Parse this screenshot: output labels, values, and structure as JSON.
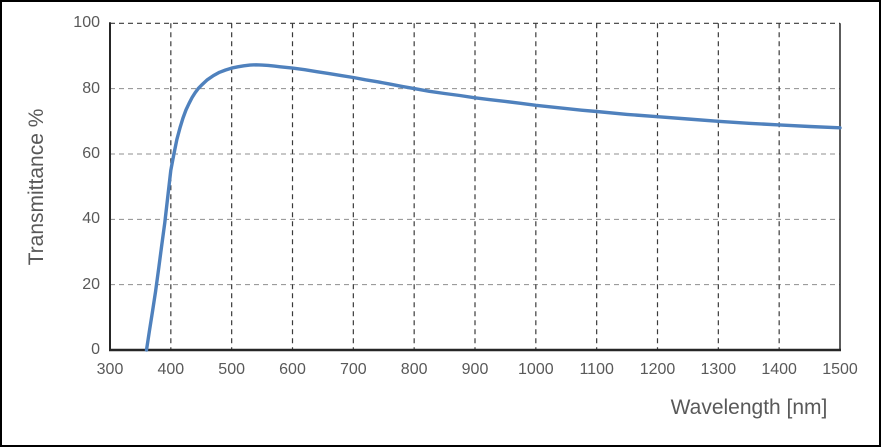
{
  "window": {
    "background": "#ffffff",
    "frame_border_color": "#000000"
  },
  "colors": {
    "curve": "#4F81BD",
    "label_text": "#595959",
    "axis_line": "#262626",
    "gridline_vertical": "#3a3a3a",
    "gridline_horizontal": "#8f8f8f"
  },
  "chart_data": {
    "type": "line",
    "title": "",
    "xlabel": "Wavelength [nm]",
    "ylabel": "Transmittance %",
    "xlim": [
      300,
      1500
    ],
    "ylim": [
      0,
      100
    ],
    "x_ticks": [
      300,
      400,
      500,
      600,
      700,
      800,
      900,
      1000,
      1100,
      1200,
      1300,
      1400,
      1500
    ],
    "y_ticks": [
      0,
      20,
      40,
      60,
      80,
      100
    ],
    "grid": "dashed, vertical lines dark, horizontal lines gray",
    "legend": "none",
    "series": [
      {
        "name": "Transmittance",
        "color": "#4F81BD",
        "points": [
          [
            360,
            0
          ],
          [
            365,
            6
          ],
          [
            370,
            12
          ],
          [
            375,
            18
          ],
          [
            380,
            25
          ],
          [
            385,
            32
          ],
          [
            390,
            39
          ],
          [
            395,
            47
          ],
          [
            400,
            55
          ],
          [
            405,
            60
          ],
          [
            410,
            64.5
          ],
          [
            415,
            68
          ],
          [
            420,
            71
          ],
          [
            425,
            73.5
          ],
          [
            430,
            75.5
          ],
          [
            435,
            77.3
          ],
          [
            440,
            78.8
          ],
          [
            445,
            80
          ],
          [
            450,
            81
          ],
          [
            460,
            82.7
          ],
          [
            470,
            84
          ],
          [
            480,
            85
          ],
          [
            490,
            85.7
          ],
          [
            500,
            86.3
          ],
          [
            510,
            86.7
          ],
          [
            520,
            87
          ],
          [
            530,
            87.2
          ],
          [
            540,
            87.3
          ],
          [
            550,
            87.2
          ],
          [
            560,
            87.1
          ],
          [
            570,
            86.9
          ],
          [
            580,
            86.7
          ],
          [
            590,
            86.5
          ],
          [
            600,
            86.3
          ],
          [
            620,
            85.8
          ],
          [
            640,
            85.2
          ],
          [
            660,
            84.6
          ],
          [
            680,
            84
          ],
          [
            700,
            83.4
          ],
          [
            720,
            82.7
          ],
          [
            740,
            82.1
          ],
          [
            760,
            81.4
          ],
          [
            780,
            80.7
          ],
          [
            800,
            80
          ],
          [
            825,
            79.2
          ],
          [
            850,
            78.5
          ],
          [
            875,
            77.9
          ],
          [
            900,
            77.2
          ],
          [
            925,
            76.6
          ],
          [
            950,
            76.1
          ],
          [
            975,
            75.5
          ],
          [
            1000,
            74.9
          ],
          [
            1025,
            74.4
          ],
          [
            1050,
            73.9
          ],
          [
            1075,
            73.4
          ],
          [
            1100,
            73
          ],
          [
            1150,
            72.1
          ],
          [
            1200,
            71.4
          ],
          [
            1250,
            70.7
          ],
          [
            1300,
            70
          ],
          [
            1350,
            69.4
          ],
          [
            1400,
            68.9
          ],
          [
            1450,
            68.4
          ],
          [
            1500,
            68
          ]
        ]
      }
    ]
  }
}
